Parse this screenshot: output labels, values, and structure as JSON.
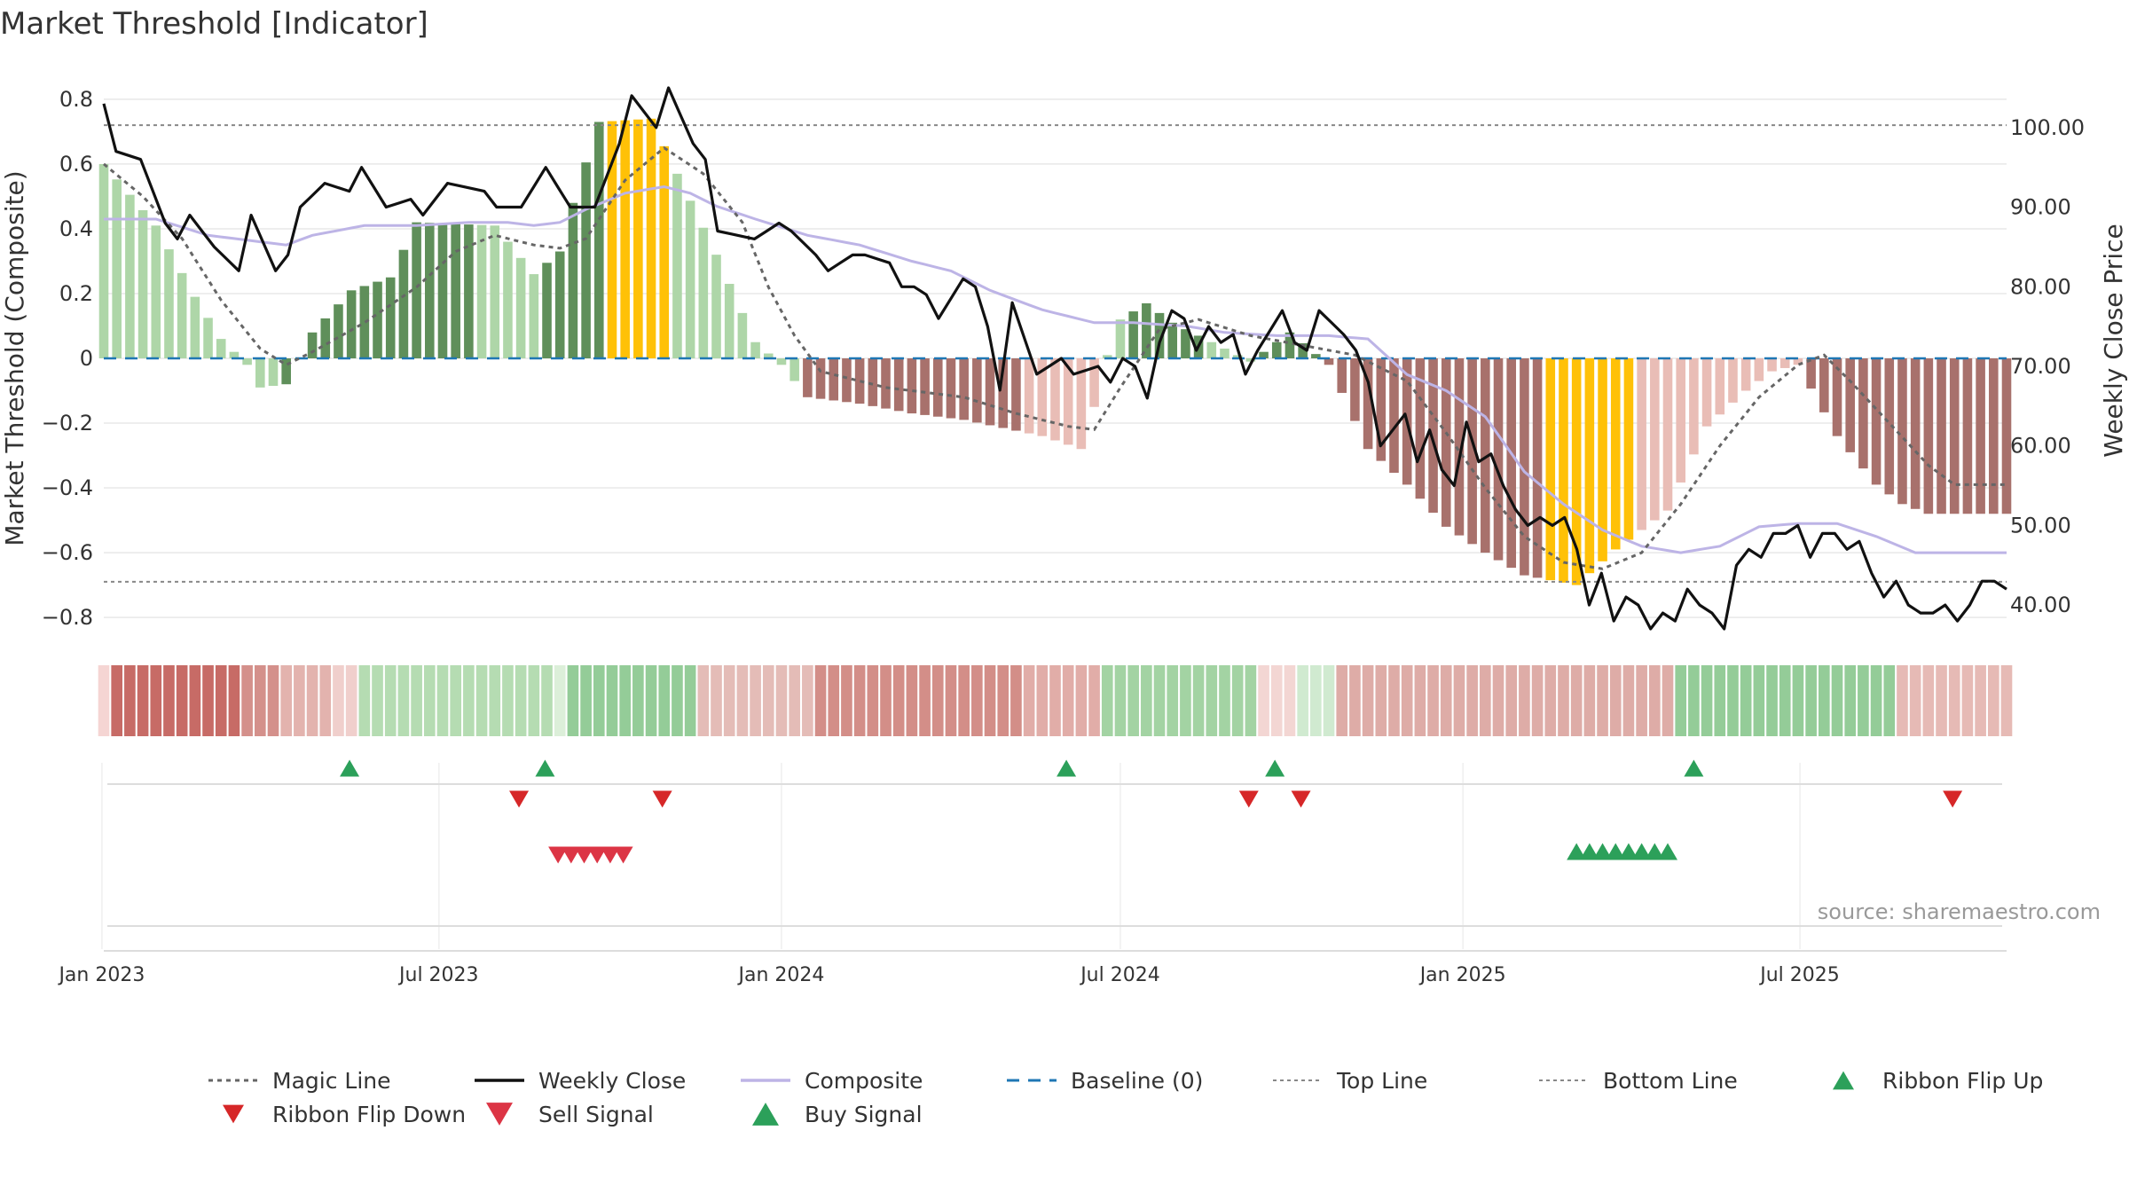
{
  "title": "Market Threshold [Indicator]",
  "source": "source: sharemaestro.com",
  "colors": {
    "bar_light_green": "#aed6a8",
    "bar_dark_green": "#5f8f5a",
    "bar_light_red": "#e9bdb6",
    "bar_dark_red": "#a8716c",
    "bar_yellow": "#ffc107",
    "magic_line": "#666666",
    "weekly_close": "#111111",
    "composite": "#bdb4e6",
    "baseline": "#1f77b4",
    "threshold_lines": "#888888",
    "buy": "#2ca05a",
    "sell": "#dc3545",
    "flip_up": "#2ca05a",
    "flip_down": "#d62728",
    "grid": "#e8e8e8"
  },
  "chart_data": {
    "type": "bar+line",
    "title": "Market Threshold [Indicator]",
    "x_start": "2023-01-02",
    "x_end": "2025-10-20",
    "week_count": 147,
    "y_left": {
      "label": "Market Threshold (Composite)",
      "range": [
        -0.86,
        0.86
      ],
      "ticks": [
        0.8,
        0.6,
        0.4,
        0.2,
        0,
        -0.2,
        -0.4,
        -0.6,
        -0.8
      ],
      "tick_labels": [
        "0.8",
        "0.6",
        "0.4",
        "0.2",
        "0",
        "−0.2",
        "−0.4",
        "−0.6",
        "−0.8"
      ]
    },
    "y_right": {
      "label": "Weekly Close Price",
      "range": [
        36,
        106
      ],
      "ticks": [
        100,
        90,
        80,
        70,
        60,
        50,
        40
      ],
      "tick_labels": [
        "100.00",
        "90.00",
        "80.00",
        "70.00",
        "60.00",
        "50.00",
        "40.00"
      ]
    },
    "x_ticks": [
      {
        "date": "2023-01-01",
        "label": "Jan 2023"
      },
      {
        "date": "2023-07-01",
        "label": "Jul 2023"
      },
      {
        "date": "2024-01-01",
        "label": "Jan 2024"
      },
      {
        "date": "2024-07-01",
        "label": "Jul 2024"
      },
      {
        "date": "2025-01-01",
        "label": "Jan 2025"
      },
      {
        "date": "2025-07-01",
        "label": "Jul 2025"
      }
    ],
    "top_line": 0.72,
    "bottom_line": -0.69,
    "baseline": 0,
    "threshold_keyframes": [
      [
        0,
        0.6
      ],
      [
        4,
        0.41
      ],
      [
        7,
        0.19
      ],
      [
        9,
        0.06
      ],
      [
        11,
        -0.02
      ],
      [
        12,
        -0.09
      ],
      [
        14,
        -0.08
      ],
      [
        16,
        0.08
      ],
      [
        19,
        0.21
      ],
      [
        22,
        0.25
      ],
      [
        24,
        0.42
      ],
      [
        30,
        0.41
      ],
      [
        33,
        0.26
      ],
      [
        35,
        0.33
      ],
      [
        36,
        0.48
      ],
      [
        38,
        0.73
      ],
      [
        42,
        0.74
      ],
      [
        44,
        0.57
      ],
      [
        47,
        0.32
      ],
      [
        50,
        0.05
      ],
      [
        52,
        -0.02
      ],
      [
        54,
        -0.12
      ],
      [
        58,
        -0.14
      ],
      [
        62,
        -0.17
      ],
      [
        66,
        -0.19
      ],
      [
        72,
        -0.24
      ],
      [
        75,
        -0.28
      ],
      [
        76,
        -0.15
      ],
      [
        77,
        0.01
      ],
      [
        78,
        0.12
      ],
      [
        80,
        0.17
      ],
      [
        82,
        0.11
      ],
      [
        85,
        0.05
      ],
      [
        88,
        -0.01
      ],
      [
        91,
        0.08
      ],
      [
        94,
        -0.02
      ],
      [
        97,
        -0.28
      ],
      [
        100,
        -0.39
      ],
      [
        103,
        -0.52
      ],
      [
        106,
        -0.6
      ],
      [
        109,
        -0.67
      ],
      [
        113,
        -0.7
      ],
      [
        116,
        -0.59
      ],
      [
        120,
        -0.47
      ],
      [
        123,
        -0.21
      ],
      [
        126,
        -0.1
      ],
      [
        128,
        -0.04
      ],
      [
        130,
        -0.02
      ],
      [
        133,
        -0.24
      ],
      [
        136,
        -0.39
      ],
      [
        138,
        -0.45
      ],
      [
        140,
        -0.48
      ]
    ],
    "threshold_colors": [
      {
        "from": 0,
        "to": 13,
        "color": "bar_light_green"
      },
      {
        "from": 14,
        "to": 28,
        "color": "bar_dark_green"
      },
      {
        "from": 29,
        "to": 33,
        "color": "bar_light_green"
      },
      {
        "from": 34,
        "to": 38,
        "color": "bar_dark_green"
      },
      {
        "from": 39,
        "to": 43,
        "color": "bar_yellow"
      },
      {
        "from": 44,
        "to": 53,
        "color": "bar_light_green"
      },
      {
        "from": 54,
        "to": 70,
        "color": "bar_dark_red"
      },
      {
        "from": 71,
        "to": 76,
        "color": "bar_light_red"
      },
      {
        "from": 77,
        "to": 78,
        "color": "bar_light_green"
      },
      {
        "from": 79,
        "to": 84,
        "color": "bar_dark_green"
      },
      {
        "from": 85,
        "to": 88,
        "color": "bar_light_green"
      },
      {
        "from": 89,
        "to": 93,
        "color": "bar_dark_green"
      },
      {
        "from": 94,
        "to": 103,
        "color": "bar_dark_red"
      },
      {
        "from": 104,
        "to": 110,
        "color": "bar_dark_red"
      },
      {
        "from": 111,
        "to": 117,
        "color": "bar_yellow"
      },
      {
        "from": 118,
        "to": 128,
        "color": "bar_light_red"
      },
      {
        "from": 129,
        "to": 130,
        "color": "bar_light_red"
      },
      {
        "from": 131,
        "to": 146,
        "color": "bar_dark_red"
      }
    ],
    "price_keyframes": [
      [
        0,
        103
      ],
      [
        1,
        97
      ],
      [
        3,
        96
      ],
      [
        5,
        88
      ],
      [
        6,
        86
      ],
      [
        7,
        89
      ],
      [
        9,
        85
      ],
      [
        11,
        82
      ],
      [
        12,
        89
      ],
      [
        14,
        82
      ],
      [
        15,
        84
      ],
      [
        16,
        90
      ],
      [
        18,
        93
      ],
      [
        20,
        92
      ],
      [
        21,
        95
      ],
      [
        23,
        90
      ],
      [
        25,
        91
      ],
      [
        26,
        89
      ],
      [
        28,
        93
      ],
      [
        31,
        92
      ],
      [
        32,
        90
      ],
      [
        34,
        90
      ],
      [
        36,
        95
      ],
      [
        38,
        90
      ],
      [
        40,
        90
      ],
      [
        42,
        98
      ],
      [
        43,
        104
      ],
      [
        45,
        100
      ],
      [
        46,
        105
      ],
      [
        48,
        98
      ],
      [
        49,
        96
      ],
      [
        50,
        87
      ],
      [
        53,
        86
      ],
      [
        55,
        88
      ],
      [
        56,
        87
      ],
      [
        58,
        84
      ],
      [
        59,
        82
      ],
      [
        61,
        84
      ],
      [
        62,
        84
      ],
      [
        64,
        83
      ],
      [
        65,
        80
      ],
      [
        66,
        80
      ],
      [
        67,
        79
      ],
      [
        68,
        76
      ],
      [
        70,
        81
      ],
      [
        71,
        80
      ],
      [
        72,
        75
      ],
      [
        73,
        67
      ],
      [
        74,
        78
      ],
      [
        76,
        69
      ],
      [
        78,
        71
      ],
      [
        79,
        69
      ],
      [
        81,
        70
      ],
      [
        82,
        68
      ],
      [
        83,
        71
      ],
      [
        84,
        70
      ],
      [
        85,
        66
      ],
      [
        86,
        73
      ],
      [
        87,
        77
      ],
      [
        88,
        76
      ],
      [
        89,
        72
      ],
      [
        90,
        75
      ],
      [
        91,
        73
      ],
      [
        92,
        74
      ],
      [
        93,
        69
      ],
      [
        94,
        72
      ],
      [
        96,
        77
      ],
      [
        97,
        73
      ],
      [
        98,
        72
      ],
      [
        99,
        77
      ],
      [
        101,
        74
      ],
      [
        102,
        72
      ],
      [
        103,
        68
      ],
      [
        104,
        60
      ],
      [
        105,
        62
      ],
      [
        106,
        64
      ],
      [
        107,
        58
      ],
      [
        108,
        62
      ],
      [
        109,
        57
      ],
      [
        110,
        55
      ],
      [
        111,
        63
      ],
      [
        112,
        58
      ],
      [
        113,
        59
      ],
      [
        114,
        55
      ],
      [
        115,
        52
      ],
      [
        116,
        50
      ],
      [
        117,
        51
      ],
      [
        118,
        50
      ],
      [
        119,
        51
      ],
      [
        120,
        47
      ],
      [
        121,
        40
      ],
      [
        122,
        44
      ],
      [
        123,
        38
      ],
      [
        124,
        41
      ],
      [
        125,
        40
      ],
      [
        126,
        37
      ],
      [
        127,
        39
      ],
      [
        128,
        38
      ],
      [
        129,
        42
      ],
      [
        130,
        40
      ],
      [
        131,
        39
      ],
      [
        132,
        37
      ],
      [
        133,
        45
      ],
      [
        134,
        47
      ],
      [
        135,
        46
      ],
      [
        136,
        49
      ],
      [
        137,
        49
      ],
      [
        138,
        50
      ],
      [
        139,
        46
      ],
      [
        140,
        49
      ],
      [
        141,
        49
      ],
      [
        142,
        47
      ],
      [
        143,
        48
      ],
      [
        144,
        44
      ],
      [
        145,
        41
      ],
      [
        146,
        43
      ],
      [
        147,
        40
      ],
      [
        148,
        39
      ],
      [
        149,
        39
      ],
      [
        150,
        40
      ],
      [
        151,
        38
      ],
      [
        152,
        40
      ],
      [
        153,
        43
      ],
      [
        154,
        43
      ],
      [
        155,
        42
      ]
    ],
    "magic_keyframes": [
      [
        0,
        0.6
      ],
      [
        3,
        0.5
      ],
      [
        6,
        0.37
      ],
      [
        9,
        0.18
      ],
      [
        12,
        0.03
      ],
      [
        14,
        -0.02
      ],
      [
        16,
        0.02
      ],
      [
        20,
        0.11
      ],
      [
        24,
        0.22
      ],
      [
        27,
        0.33
      ],
      [
        30,
        0.38
      ],
      [
        33,
        0.35
      ],
      [
        35,
        0.34
      ],
      [
        37,
        0.37
      ],
      [
        40,
        0.55
      ],
      [
        43,
        0.65
      ],
      [
        46,
        0.57
      ],
      [
        49,
        0.42
      ],
      [
        51,
        0.22
      ],
      [
        53,
        0.07
      ],
      [
        55,
        -0.04
      ],
      [
        60,
        -0.09
      ],
      [
        66,
        -0.12
      ],
      [
        70,
        -0.17
      ],
      [
        74,
        -0.21
      ],
      [
        76,
        -0.22
      ],
      [
        78,
        -0.09
      ],
      [
        81,
        0.09
      ],
      [
        84,
        0.12
      ],
      [
        88,
        0.07
      ],
      [
        92,
        0.04
      ],
      [
        96,
        0.01
      ],
      [
        100,
        -0.07
      ],
      [
        103,
        -0.23
      ],
      [
        106,
        -0.4
      ],
      [
        109,
        -0.55
      ],
      [
        112,
        -0.63
      ],
      [
        115,
        -0.65
      ],
      [
        118,
        -0.6
      ],
      [
        121,
        -0.45
      ],
      [
        124,
        -0.27
      ],
      [
        127,
        -0.12
      ],
      [
        130,
        -0.02
      ],
      [
        132,
        0.01
      ],
      [
        134,
        -0.07
      ],
      [
        137,
        -0.2
      ],
      [
        140,
        -0.33
      ],
      [
        142,
        -0.39
      ]
    ],
    "composite_keyframes": [
      [
        0,
        0.43
      ],
      [
        4,
        0.43
      ],
      [
        8,
        0.38
      ],
      [
        12,
        0.36
      ],
      [
        14,
        0.35
      ],
      [
        16,
        0.38
      ],
      [
        20,
        0.41
      ],
      [
        24,
        0.41
      ],
      [
        28,
        0.42
      ],
      [
        31,
        0.42
      ],
      [
        33,
        0.41
      ],
      [
        35,
        0.42
      ],
      [
        37,
        0.46
      ],
      [
        40,
        0.51
      ],
      [
        43,
        0.53
      ],
      [
        45,
        0.51
      ],
      [
        47,
        0.47
      ],
      [
        50,
        0.43
      ],
      [
        54,
        0.38
      ],
      [
        58,
        0.35
      ],
      [
        62,
        0.3
      ],
      [
        65,
        0.27
      ],
      [
        68,
        0.21
      ],
      [
        72,
        0.15
      ],
      [
        76,
        0.11
      ],
      [
        79,
        0.11
      ],
      [
        83,
        0.1
      ],
      [
        86,
        0.08
      ],
      [
        90,
        0.07
      ],
      [
        94,
        0.07
      ],
      [
        97,
        0.06
      ],
      [
        100,
        -0.05
      ],
      [
        103,
        -0.1
      ],
      [
        106,
        -0.18
      ],
      [
        109,
        -0.35
      ],
      [
        112,
        -0.45
      ],
      [
        115,
        -0.53
      ],
      [
        118,
        -0.58
      ],
      [
        121,
        -0.6
      ],
      [
        124,
        -0.58
      ],
      [
        127,
        -0.52
      ],
      [
        130,
        -0.51
      ],
      [
        133,
        -0.51
      ],
      [
        136,
        -0.55
      ],
      [
        139,
        -0.6
      ],
      [
        142,
        -0.6
      ]
    ],
    "ribbon_colors": [
      {
        "from": 0,
        "to": 0,
        "color": "#f5d5d3"
      },
      {
        "from": 1,
        "to": 10,
        "color": "#c76b66"
      },
      {
        "from": 11,
        "to": 13,
        "color": "#d4908b"
      },
      {
        "from": 14,
        "to": 17,
        "color": "#e3b3ae"
      },
      {
        "from": 18,
        "to": 19,
        "color": "#f0cfcc"
      },
      {
        "from": 20,
        "to": 34,
        "color": "#b5dcb2"
      },
      {
        "from": 35,
        "to": 35,
        "color": "#dcefd9"
      },
      {
        "from": 36,
        "to": 45,
        "color": "#94cc98"
      },
      {
        "from": 46,
        "to": 54,
        "color": "#e4bcb7"
      },
      {
        "from": 55,
        "to": 70,
        "color": "#d38e88"
      },
      {
        "from": 71,
        "to": 76,
        "color": "#e1ada8"
      },
      {
        "from": 77,
        "to": 88,
        "color": "#a3d3a3"
      },
      {
        "from": 89,
        "to": 91,
        "color": "#f3d6d3"
      },
      {
        "from": 92,
        "to": 94,
        "color": "#d0ead0"
      },
      {
        "from": 95,
        "to": 120,
        "color": "#deaca7"
      },
      {
        "from": 121,
        "to": 137,
        "color": "#94cc98"
      },
      {
        "from": 138,
        "to": 146,
        "color": "#e6bab5"
      }
    ],
    "ribbon_flip_up_dates": [
      "2023-05-14",
      "2023-08-27",
      "2024-06-02",
      "2024-09-22",
      "2025-05-05"
    ],
    "ribbon_flip_down_dates": [
      "2023-08-13",
      "2023-10-29",
      "2024-09-08",
      "2024-10-06",
      "2025-09-21"
    ],
    "sell_signal_dates": [
      "2023-09-03",
      "2023-09-10",
      "2023-09-17",
      "2023-09-24",
      "2023-10-01",
      "2023-10-08"
    ],
    "buy_signal_dates": [
      "2025-03-03",
      "2025-03-10",
      "2025-03-17",
      "2025-03-24",
      "2025-03-31",
      "2025-04-07",
      "2025-04-14",
      "2025-04-21"
    ]
  },
  "legend": [
    {
      "key": "magic",
      "label": "Magic Line",
      "kind": "dotted",
      "color": "magic_line"
    },
    {
      "key": "close",
      "label": "Weekly Close",
      "kind": "solid",
      "color": "weekly_close"
    },
    {
      "key": "composite",
      "label": "Composite",
      "kind": "solid",
      "color": "composite"
    },
    {
      "key": "baseline",
      "label": "Baseline (0)",
      "kind": "dashed",
      "color": "baseline"
    },
    {
      "key": "top",
      "label": "Top Line",
      "kind": "fine-dotted",
      "color": "threshold_lines"
    },
    {
      "key": "bottom",
      "label": "Bottom Line",
      "kind": "fine-dotted",
      "color": "threshold_lines"
    },
    {
      "key": "flip_up",
      "label": "Ribbon Flip Up",
      "kind": "tri-up-small",
      "color": "flip_up"
    },
    {
      "key": "flip_down",
      "label": "Ribbon Flip Down",
      "kind": "tri-down-small",
      "color": "flip_down"
    },
    {
      "key": "sell",
      "label": "Sell Signal",
      "kind": "tri-down-big",
      "color": "sell"
    },
    {
      "key": "buy",
      "label": "Buy Signal",
      "kind": "tri-up-big",
      "color": "buy"
    }
  ]
}
